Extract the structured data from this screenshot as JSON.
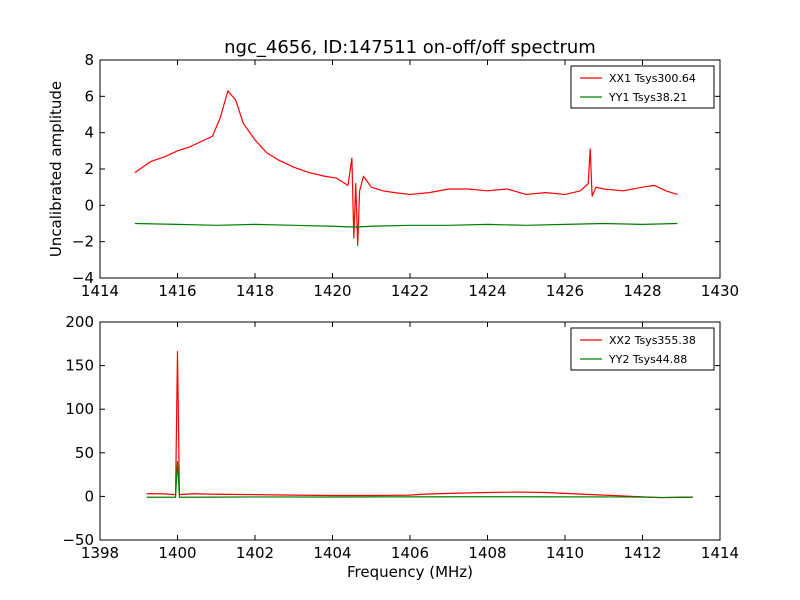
{
  "chart_data": [
    {
      "type": "line",
      "title": "ngc_4656, ID:147511 on-off/off spectrum",
      "xlabel": "",
      "ylabel": "Uncalibrated amplitude",
      "xlim": [
        1414,
        1430
      ],
      "ylim": [
        -4,
        8
      ],
      "xticks": [
        "1414",
        "1416",
        "1418",
        "1420",
        "1422",
        "1424",
        "1426",
        "1428",
        "1430"
      ],
      "yticks": [
        "−4",
        "−2",
        "0",
        "2",
        "4",
        "6",
        "8"
      ],
      "legend_position": "top-right",
      "series": [
        {
          "name": "XX1 Tsys300.64",
          "color": "#ff0000",
          "x": [
            1414.9,
            1415.3,
            1415.7,
            1416.0,
            1416.3,
            1416.6,
            1416.9,
            1417.1,
            1417.3,
            1417.5,
            1417.7,
            1418.0,
            1418.3,
            1418.6,
            1419.0,
            1419.4,
            1419.8,
            1420.1,
            1420.4,
            1420.5,
            1420.55,
            1420.6,
            1420.65,
            1420.7,
            1420.8,
            1421.0,
            1421.3,
            1421.6,
            1422.0,
            1422.5,
            1423.0,
            1423.5,
            1424.0,
            1424.5,
            1425.0,
            1425.5,
            1426.0,
            1426.4,
            1426.6,
            1426.65,
            1426.7,
            1426.8,
            1427.0,
            1427.5,
            1428.0,
            1428.3,
            1428.6,
            1428.9
          ],
          "values": [
            1.8,
            2.4,
            2.7,
            3.0,
            3.2,
            3.5,
            3.8,
            4.8,
            6.3,
            5.8,
            4.5,
            3.6,
            2.9,
            2.5,
            2.1,
            1.8,
            1.6,
            1.5,
            1.1,
            2.6,
            -1.8,
            1.2,
            -2.2,
            0.8,
            1.6,
            1.0,
            0.8,
            0.7,
            0.6,
            0.7,
            0.9,
            0.9,
            0.8,
            0.9,
            0.6,
            0.7,
            0.6,
            0.8,
            1.2,
            3.1,
            0.5,
            1.0,
            0.9,
            0.8,
            1.0,
            1.1,
            0.8,
            0.6
          ]
        },
        {
          "name": "YY1 Tsys38.21",
          "color": "#008000",
          "x": [
            1414.9,
            1416.0,
            1417.0,
            1418.0,
            1419.0,
            1420.0,
            1420.6,
            1421.0,
            1422.0,
            1423.0,
            1424.0,
            1425.0,
            1426.0,
            1427.0,
            1428.0,
            1428.9
          ],
          "values": [
            -1.0,
            -1.05,
            -1.1,
            -1.05,
            -1.1,
            -1.15,
            -1.2,
            -1.15,
            -1.1,
            -1.1,
            -1.05,
            -1.1,
            -1.05,
            -1.0,
            -1.05,
            -1.0
          ]
        }
      ]
    },
    {
      "type": "line",
      "title": "",
      "xlabel": "Frequency (MHz)",
      "ylabel": "",
      "xlim": [
        1398,
        1414
      ],
      "ylim": [
        -50,
        200
      ],
      "xticks": [
        "1398",
        "1400",
        "1402",
        "1404",
        "1406",
        "1408",
        "1410",
        "1412",
        "1414"
      ],
      "yticks": [
        "−50",
        "0",
        "50",
        "100",
        "150",
        "200"
      ],
      "legend_position": "top-right",
      "series": [
        {
          "name": "XX2 Tsys355.38",
          "color": "#ff0000",
          "x": [
            1399.2,
            1399.6,
            1399.95,
            1400.0,
            1400.05,
            1400.4,
            1401.0,
            1402.0,
            1403.0,
            1404.0,
            1405.0,
            1406.0,
            1406.3,
            1407.0,
            1408.0,
            1408.8,
            1409.5,
            1410.0,
            1410.5,
            1411.0,
            1411.5,
            1412.0,
            1412.5,
            1413.0,
            1413.3
          ],
          "values": [
            3,
            3,
            2,
            166,
            2,
            3,
            2.5,
            2,
            1.5,
            1,
            1,
            1.5,
            2.5,
            3.5,
            4.5,
            5,
            4.5,
            3.5,
            2.5,
            1.5,
            0.5,
            -0.5,
            -1.5,
            -1,
            -1
          ]
        },
        {
          "name": "YY2 Tsys44.88",
          "color": "#008000",
          "x": [
            1399.2,
            1399.95,
            1400.0,
            1400.05,
            1401.0,
            1402.0,
            1404.0,
            1406.0,
            1408.0,
            1410.0,
            1411.5,
            1412.0,
            1412.5,
            1413.0,
            1413.3
          ],
          "values": [
            -1,
            -1,
            40,
            -1,
            -0.8,
            -0.6,
            -0.7,
            -0.5,
            -0.4,
            -0.5,
            -0.6,
            -0.8,
            -1.2,
            -1,
            -0.8
          ]
        }
      ]
    }
  ]
}
